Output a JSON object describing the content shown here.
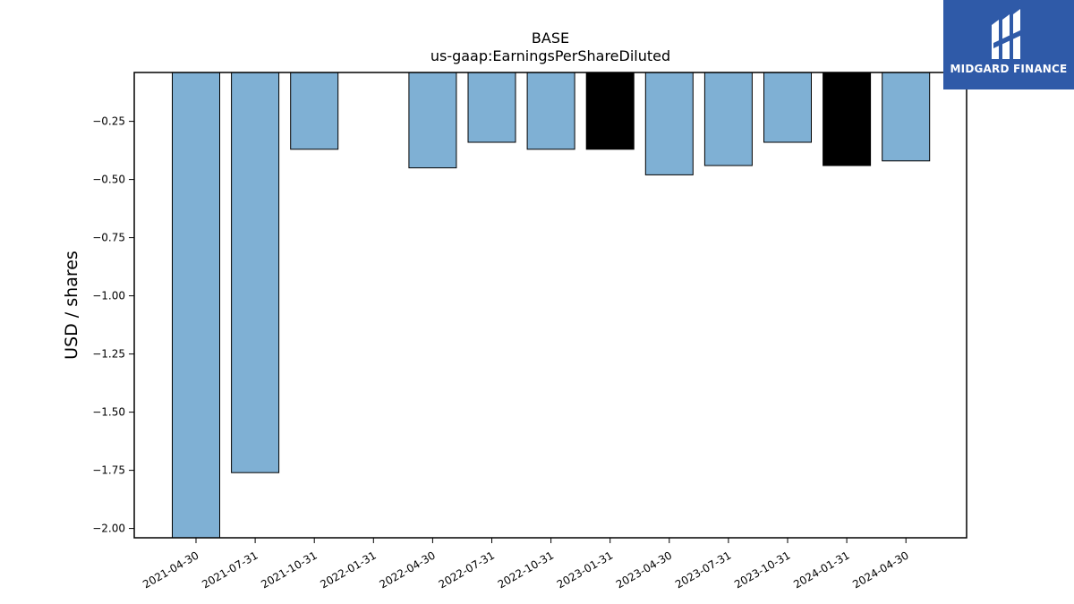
{
  "chart_data": {
    "type": "bar",
    "title": "BASE",
    "subtitle": "us-gaap:EarningsPerShareDiluted",
    "xlabel": "",
    "ylabel": "USD / shares",
    "categories": [
      "2021-04-30",
      "2021-07-31",
      "2021-10-31",
      "2022-01-31",
      "2022-04-30",
      "2022-07-31",
      "2022-10-31",
      "2023-01-31",
      "2023-04-30",
      "2023-07-31",
      "2023-10-31",
      "2024-01-31",
      "2024-04-30"
    ],
    "values": [
      -2.09,
      -1.76,
      -0.37,
      null,
      -0.45,
      -0.34,
      -0.37,
      -0.37,
      -0.48,
      -0.44,
      -0.34,
      -0.44,
      -0.42
    ],
    "highlighted": [
      false,
      false,
      false,
      false,
      false,
      false,
      false,
      true,
      false,
      false,
      false,
      true,
      false
    ],
    "ylim": [
      -2.04,
      -0.04
    ],
    "yticks": [
      -0.25,
      -0.5,
      -0.75,
      -1.0,
      -1.25,
      -1.5,
      -1.75,
      -2.0
    ],
    "ytick_labels": [
      "−0.25",
      "−0.50",
      "−0.75",
      "−1.00",
      "−1.25",
      "−1.50",
      "−1.75",
      "−2.00"
    ],
    "grid": false,
    "colors": {
      "bar": "#7fb0d4",
      "highlight": "#000000",
      "edge": "#000000"
    }
  },
  "logo": {
    "text": "MIDGARD FINANCE",
    "background": "#2f5aa8"
  }
}
